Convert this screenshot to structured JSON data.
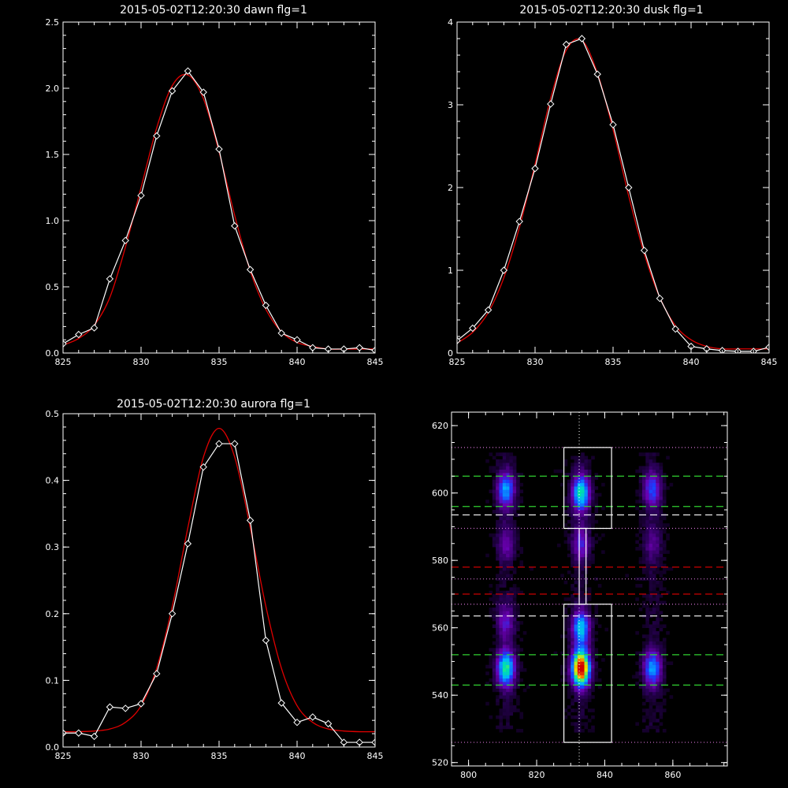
{
  "chart_data": [
    {
      "type": "line",
      "title": "2015-05-02T12:20:30 dawn flg=1",
      "xlim": [
        825,
        845
      ],
      "ylim": [
        0,
        2.5
      ],
      "xticks": [
        825,
        830,
        835,
        840,
        845
      ],
      "yticks": [
        "0.0",
        "0.5",
        "1.0",
        "1.5",
        "2.0",
        "2.5"
      ],
      "series": [
        {
          "kind": "data",
          "color": "#ffffff",
          "marker": "diamond",
          "x": [
            825,
            826,
            827,
            828,
            829,
            830,
            831,
            832,
            833,
            834,
            835,
            836,
            837,
            838,
            839,
            840,
            841,
            842,
            843,
            844,
            845
          ],
          "y": [
            0.07,
            0.14,
            0.19,
            0.56,
            0.85,
            1.19,
            1.64,
            1.98,
            2.13,
            1.97,
            1.54,
            0.96,
            0.63,
            0.36,
            0.15,
            0.1,
            0.04,
            0.03,
            0.03,
            0.04,
            0.02
          ]
        },
        {
          "kind": "fit",
          "color": "#e00000",
          "x": [
            825,
            826,
            827,
            828,
            829,
            830,
            831,
            832,
            833,
            834,
            835,
            836,
            837,
            838,
            839,
            840,
            841,
            842,
            843,
            844,
            845
          ],
          "y": [
            0.06,
            0.11,
            0.21,
            0.42,
            0.8,
            1.25,
            1.7,
            2.02,
            2.1,
            1.92,
            1.52,
            1.04,
            0.62,
            0.33,
            0.16,
            0.08,
            0.05,
            0.03,
            0.03,
            0.03,
            0.03
          ]
        }
      ]
    },
    {
      "type": "line",
      "title": "2015-05-02T12:20:30 dusk flg=1",
      "xlim": [
        825,
        845
      ],
      "ylim": [
        0,
        4
      ],
      "xticks": [
        825,
        830,
        835,
        840,
        845
      ],
      "yticks": [
        "0",
        "1",
        "2",
        "3",
        "4"
      ],
      "series": [
        {
          "kind": "data",
          "color": "#ffffff",
          "marker": "diamond",
          "x": [
            825,
            826,
            827,
            828,
            829,
            830,
            831,
            832,
            833,
            834,
            835,
            836,
            837,
            838,
            839,
            840,
            841,
            842,
            843,
            844,
            845
          ],
          "y": [
            0.15,
            0.3,
            0.52,
            1.0,
            1.59,
            2.23,
            3.01,
            3.73,
            3.8,
            3.37,
            2.76,
            2.0,
            1.24,
            0.66,
            0.29,
            0.08,
            0.05,
            0.03,
            0.02,
            0.02,
            0.07
          ]
        },
        {
          "kind": "fit",
          "color": "#e00000",
          "x": [
            825,
            826,
            827,
            828,
            829,
            830,
            831,
            832,
            833,
            834,
            835,
            836,
            837,
            838,
            839,
            840,
            841,
            842,
            843,
            844,
            845
          ],
          "y": [
            0.12,
            0.25,
            0.49,
            0.91,
            1.52,
            2.28,
            3.08,
            3.66,
            3.78,
            3.38,
            2.7,
            1.9,
            1.2,
            0.67,
            0.33,
            0.16,
            0.08,
            0.05,
            0.05,
            0.05,
            0.05
          ]
        }
      ]
    },
    {
      "type": "line",
      "title": "2015-05-02T12:20:30 aurora flg=1",
      "xlim": [
        825,
        845
      ],
      "ylim": [
        0,
        0.5
      ],
      "xticks": [
        825,
        830,
        835,
        840,
        845
      ],
      "yticks": [
        "0.0",
        "0.1",
        "0.2",
        "0.3",
        "0.4",
        "0.5"
      ],
      "series": [
        {
          "kind": "data",
          "color": "#ffffff",
          "marker": "diamond",
          "x": [
            825,
            826,
            827,
            828,
            829,
            830,
            831,
            832,
            833,
            834,
            835,
            836,
            837,
            838,
            839,
            840,
            841,
            842,
            843,
            844,
            845
          ],
          "y": [
            0.021,
            0.021,
            0.016,
            0.06,
            0.058,
            0.065,
            0.11,
            0.2,
            0.305,
            0.42,
            0.455,
            0.455,
            0.34,
            0.16,
            0.066,
            0.037,
            0.045,
            0.035,
            0.007,
            0.007,
            0.007
          ]
        },
        {
          "kind": "fit",
          "color": "#e00000",
          "x": [
            825,
            826,
            827,
            828,
            829,
            830,
            831,
            832,
            833,
            834,
            835,
            836,
            837,
            838,
            839,
            840,
            841,
            842,
            843,
            844,
            845
          ],
          "y": [
            0.023,
            0.023,
            0.024,
            0.027,
            0.037,
            0.062,
            0.118,
            0.211,
            0.329,
            0.435,
            0.478,
            0.435,
            0.329,
            0.211,
            0.118,
            0.062,
            0.037,
            0.027,
            0.024,
            0.023,
            0.023
          ]
        }
      ]
    },
    {
      "type": "heatmap",
      "title": "",
      "xlim": [
        795,
        876
      ],
      "ylim": [
        519,
        624
      ],
      "xticks": [
        800,
        820,
        840,
        860
      ],
      "yticks": [
        520,
        540,
        560,
        580,
        600,
        620
      ],
      "colormap": [
        "#000000",
        "#2a0058",
        "#6a00b0",
        "#1b3cff",
        "#00b4ff",
        "#00e8a0",
        "#e8f000",
        "#ff6000",
        "#d00000"
      ],
      "blobs": [
        {
          "x": 811,
          "y": 601,
          "peak": 0.42
        },
        {
          "x": 833,
          "y": 600,
          "peak": 0.55
        },
        {
          "x": 854,
          "y": 601,
          "peak": 0.32
        },
        {
          "x": 811,
          "y": 585,
          "peak": 0.18
        },
        {
          "x": 833,
          "y": 585,
          "peak": 0.25
        },
        {
          "x": 854,
          "y": 585,
          "peak": 0.15
        },
        {
          "x": 811,
          "y": 548,
          "peak": 0.58
        },
        {
          "x": 833,
          "y": 548,
          "peak": 1.0
        },
        {
          "x": 854,
          "y": 548,
          "peak": 0.42
        },
        {
          "x": 833,
          "y": 560,
          "peak": 0.48
        },
        {
          "x": 811,
          "y": 562,
          "peak": 0.22
        }
      ],
      "lines": [
        {
          "orientation": "v",
          "value": 832.5,
          "color": "#ffffff",
          "style": "dotted"
        },
        {
          "orientation": "h",
          "value": 613.5,
          "color": "#d070d0",
          "style": "dotted"
        },
        {
          "orientation": "h",
          "value": 605,
          "color": "#30d030",
          "style": "dashed"
        },
        {
          "orientation": "h",
          "value": 596,
          "color": "#30d030",
          "style": "dashed"
        },
        {
          "orientation": "h",
          "value": 593.5,
          "color": "#ffffff",
          "style": "dashed"
        },
        {
          "orientation": "h",
          "value": 589.5,
          "color": "#d070d0",
          "style": "dotted"
        },
        {
          "orientation": "h",
          "value": 578,
          "color": "#e00000",
          "style": "dashed"
        },
        {
          "orientation": "h",
          "value": 574.5,
          "color": "#d070d0",
          "style": "dotted"
        },
        {
          "orientation": "h",
          "value": 570,
          "color": "#e00000",
          "style": "dashed"
        },
        {
          "orientation": "h",
          "value": 567,
          "color": "#d070d0",
          "style": "dotted"
        },
        {
          "orientation": "h",
          "value": 563.5,
          "color": "#ffffff",
          "style": "dashed"
        },
        {
          "orientation": "h",
          "value": 552,
          "color": "#30d030",
          "style": "dashed"
        },
        {
          "orientation": "h",
          "value": 543,
          "color": "#30d030",
          "style": "dashed"
        },
        {
          "orientation": "h",
          "value": 526,
          "color": "#d070d0",
          "style": "dotted"
        }
      ],
      "boxes": [
        {
          "x0": 828,
          "x1": 842,
          "y0": 589.5,
          "y1": 613.5
        },
        {
          "x0": 832.5,
          "x1": 834.5,
          "y0": 567,
          "y1": 589.5
        },
        {
          "x0": 828,
          "x1": 842,
          "y0": 526,
          "y1": 567
        }
      ]
    }
  ]
}
